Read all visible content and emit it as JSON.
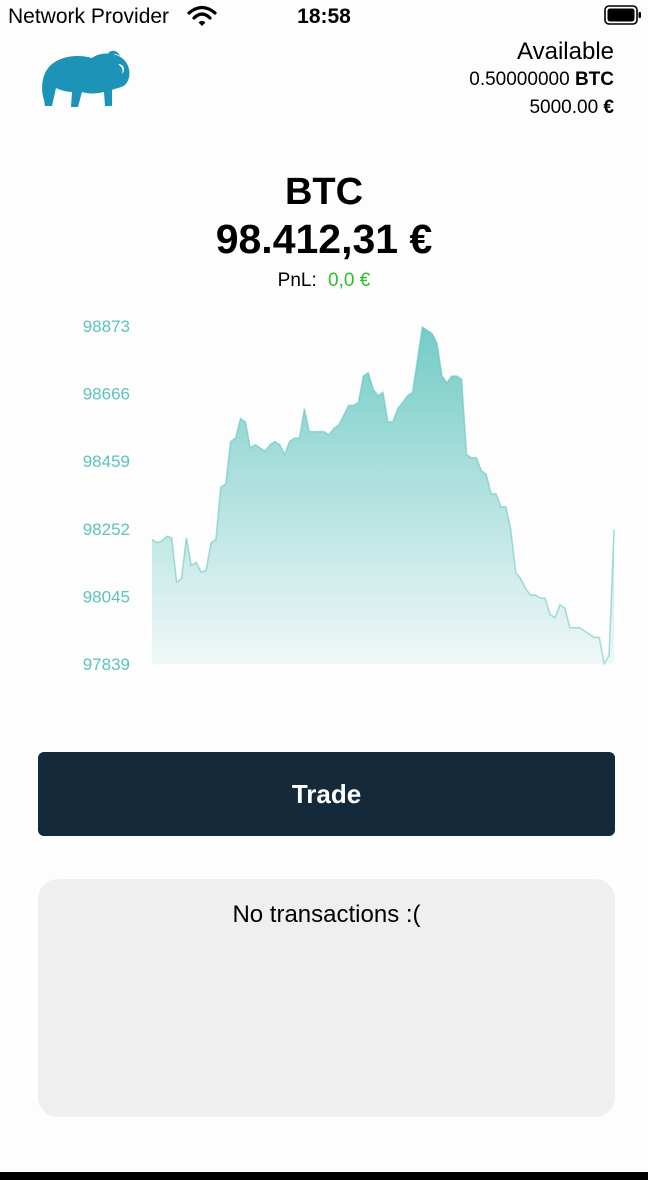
{
  "status_bar": {
    "carrier": "Network Provider",
    "time": "18:58",
    "wifi_icon": "wifi-icon",
    "battery_icon": "battery-icon"
  },
  "header": {
    "logo_icon": "bison-logo-icon",
    "available_title": "Available",
    "btc_amount": "0.50000000",
    "btc_unit": "BTC",
    "eur_amount": "5000.00",
    "eur_unit": "€"
  },
  "asset": {
    "symbol": "BTC",
    "price": "98.412,31 €",
    "pnl_label": "PnL:",
    "pnl_value": "0,0 €"
  },
  "colors": {
    "accent": "#5cc3bd",
    "button": "#14293a",
    "pnl_positive": "#2fbf2a",
    "panel": "#efefef",
    "logo": "#1c93b7"
  },
  "chart_data": {
    "type": "area",
    "ylim": [
      97839,
      98873
    ],
    "y_ticks": [
      "98873",
      "98666",
      "98459",
      "98252",
      "98045",
      "97839"
    ],
    "grid": false,
    "values": [
      98220,
      98210,
      98215,
      98230,
      98225,
      98090,
      98100,
      98225,
      98140,
      98150,
      98120,
      98125,
      98210,
      98220,
      98380,
      98390,
      98520,
      98530,
      98590,
      98580,
      98500,
      98510,
      98500,
      98490,
      98510,
      98520,
      98510,
      98480,
      98520,
      98530,
      98530,
      98620,
      98550,
      98550,
      98550,
      98550,
      98540,
      98560,
      98570,
      98600,
      98630,
      98630,
      98640,
      98720,
      98730,
      98680,
      98660,
      98670,
      98580,
      98580,
      98620,
      98640,
      98660,
      98670,
      98770,
      98870,
      98860,
      98850,
      98820,
      98720,
      98700,
      98720,
      98720,
      98710,
      98480,
      98470,
      98470,
      98430,
      98420,
      98360,
      98360,
      98320,
      98320,
      98250,
      98120,
      98100,
      98070,
      98050,
      98050,
      98040,
      98040,
      97990,
      97980,
      98020,
      98010,
      97950,
      97950,
      97950,
      97940,
      97930,
      97920,
      97920,
      97840,
      97865,
      98250
    ]
  },
  "trade": {
    "label": "Trade"
  },
  "transactions": {
    "empty_text": "No transactions :("
  }
}
